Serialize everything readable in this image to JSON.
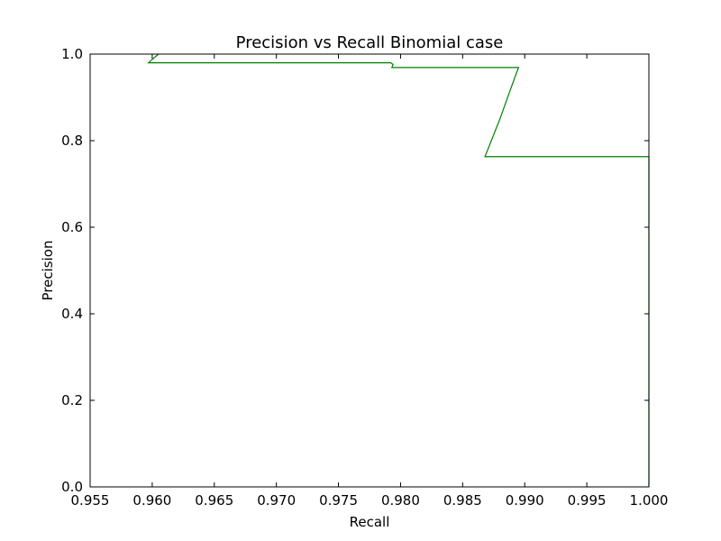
{
  "chart_data": {
    "type": "line",
    "title": "Precision vs Recall Binomial case",
    "xlabel": "Recall",
    "ylabel": "Precision",
    "xlim": [
      0.955,
      1.0
    ],
    "ylim": [
      0.0,
      1.0
    ],
    "x_ticks": [
      "0.955",
      "0.960",
      "0.965",
      "0.970",
      "0.975",
      "0.980",
      "0.985",
      "0.990",
      "0.995",
      "1.000"
    ],
    "y_ticks": [
      "0.0",
      "0.2",
      "0.4",
      "0.6",
      "0.8",
      "1.0"
    ],
    "grid": false,
    "legend": "none",
    "series": [
      {
        "color": "#008000",
        "x": [
          0.9605,
          0.9597,
          0.9792,
          0.9794,
          0.9793,
          0.9895,
          0.989,
          0.988,
          0.9868,
          1.0,
          1.0
        ],
        "y": [
          1.0,
          0.98,
          0.98,
          0.976,
          0.969,
          0.969,
          0.93,
          0.85,
          0.763,
          0.763,
          0.0
        ]
      }
    ]
  }
}
